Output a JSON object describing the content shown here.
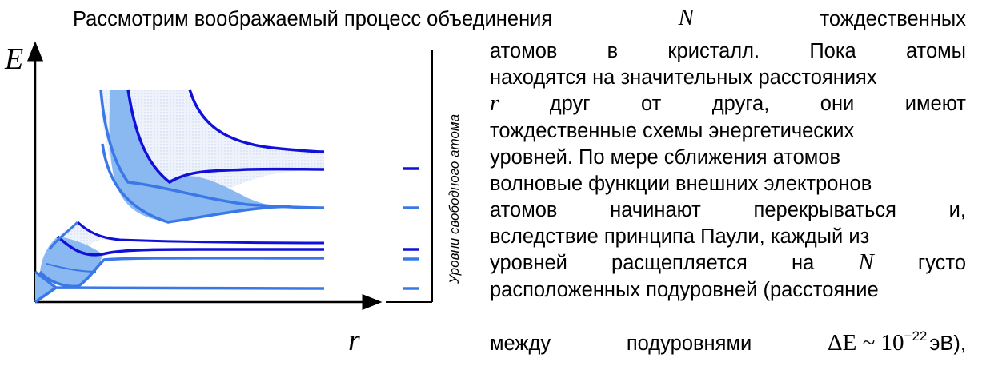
{
  "text": {
    "line1_before_N": "Рассмотрим воображаемый процесс объединения",
    "line1_N": "N",
    "line1_after_N": "тождественных",
    "line2_words": [
      "атомов",
      "в",
      "кристалл.",
      "Пока",
      "атомы"
    ],
    "line3": "находятся на значительных расстояниях",
    "line4_words": [
      "r",
      "друг",
      "от",
      "друга,",
      "они",
      "имеют"
    ],
    "line5": "тождественные схемы энергетических",
    "line6": "уровней. По мере сближения атомов",
    "line7": "волновые функции внешних электронов",
    "line8_words": [
      "атомов",
      "начинают",
      "перекрываться",
      "и,"
    ],
    "line9": "вследствие принципа Паули, каждый из",
    "line10_words": [
      "уровней",
      "расщепляется",
      "на",
      "N",
      "густо"
    ],
    "line11": "расположенных подуровней (расстояние",
    "line12_a": "между",
    "line12_b": "подуровнями",
    "line12_formula": "ΔE ~ 10",
    "line12_exp": "−22",
    "line12_unit": "эВ),"
  },
  "figure": {
    "y_axis_label": "E",
    "x_axis_label": "r",
    "levels_label": "Уровни свободного атома",
    "colors": {
      "dark_blue": "#1010d8",
      "light_blue": "#3a78e8",
      "band_fill": "#8ab8f0",
      "upper_fill": "#e4eaf8"
    }
  }
}
